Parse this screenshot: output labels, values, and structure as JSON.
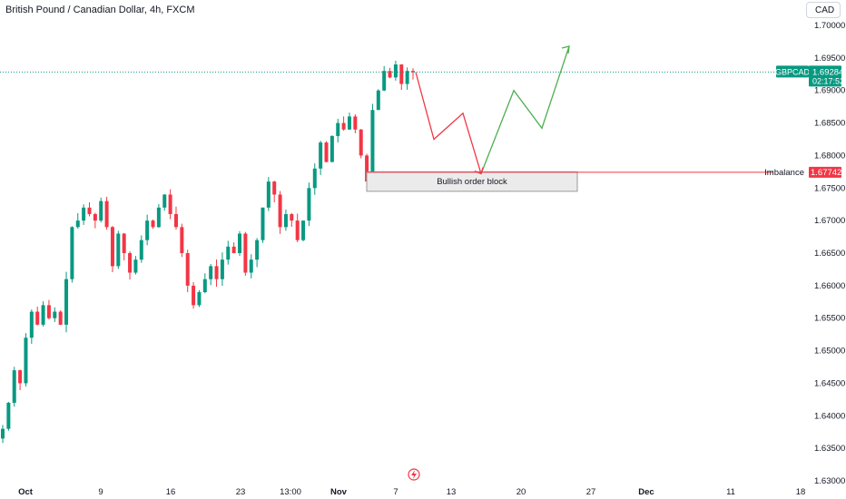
{
  "header": {
    "title": "British Pound / Canadian Dollar, 4h, FXCM",
    "currency": "CAD"
  },
  "chart_data": {
    "type": "candlestick",
    "symbol": "GBPCAD",
    "timeframe": "4h",
    "source": "FXCM",
    "ylim": [
      1.63,
      1.7
    ],
    "y_ticks": [
      "1.70000",
      "1.69500",
      "1.69000",
      "1.68500",
      "1.68000",
      "1.67500",
      "1.67000",
      "1.66500",
      "1.66000",
      "1.65500",
      "1.65000",
      "1.64500",
      "1.64000",
      "1.63500",
      "1.63000"
    ],
    "x_ticks": [
      "Oct",
      "9",
      "16",
      "23",
      "13:00",
      "Nov",
      "7",
      "13",
      "20",
      "27",
      "Dec",
      "11",
      "18"
    ],
    "last_price": {
      "label": "GBPCAD",
      "value": "1.69284",
      "countdown": "02:17:52"
    },
    "imbalance": {
      "label": "Imbalance",
      "value": "1.67742"
    },
    "order_block": {
      "label": "Bullish order block",
      "top": 1.6775,
      "bottom": 1.6745
    },
    "projection": {
      "bearish_path": [
        1.6928,
        1.6825,
        1.6865,
        1.6772
      ],
      "bullish_path": [
        1.6772,
        1.69,
        1.6842,
        1.6968
      ]
    },
    "series": [
      {
        "values": [
          1.638,
          1.642,
          1.647,
          1.645,
          1.652,
          1.656,
          1.654,
          1.657,
          1.655,
          1.656,
          1.654,
          1.661,
          1.669,
          1.67,
          1.672,
          1.671,
          1.67,
          1.673,
          1.669,
          1.663,
          1.668,
          1.665,
          1.662,
          1.664,
          1.667,
          1.67,
          1.669,
          1.672,
          1.674,
          1.671,
          1.669,
          1.665,
          1.66,
          1.657,
          1.659,
          1.661,
          1.663,
          1.661,
          1.664,
          1.666,
          1.665,
          1.668,
          1.662,
          1.664,
          1.667,
          1.672,
          1.676,
          1.674,
          1.669,
          1.671,
          1.67,
          1.667,
          1.67,
          1.675,
          1.678,
          1.682,
          1.679,
          1.683,
          1.685,
          1.684,
          1.686,
          1.684,
          1.68,
          1.676,
          1.687,
          1.69,
          1.693,
          1.692,
          1.694,
          1.691,
          1.693,
          1.6928
        ]
      }
    ]
  }
}
